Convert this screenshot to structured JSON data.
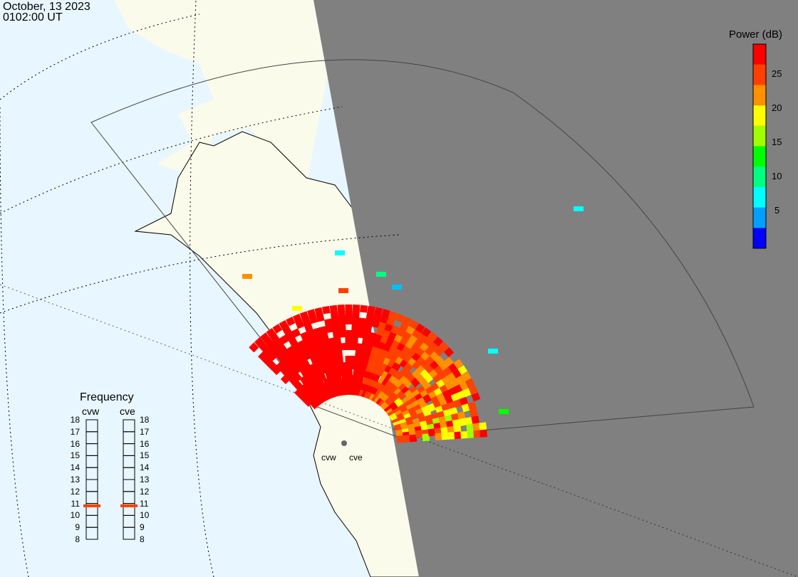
{
  "header": {
    "date": "October, 13 2023",
    "time": "0102:00 UT"
  },
  "colorbar": {
    "title": "Power (dB)",
    "ticks": [
      "25",
      "20",
      "15",
      "10",
      "5"
    ],
    "range": [
      0,
      30
    ],
    "colors": [
      "#0000ff",
      "#00a0ff",
      "#00ffff",
      "#00ff80",
      "#00ff00",
      "#a0ff00",
      "#ffff00",
      "#ff9000",
      "#ff4000",
      "#ff0000"
    ]
  },
  "frequency": {
    "title": "Frequency",
    "radars": [
      {
        "name": "cvw",
        "value_mhz": 10.8
      },
      {
        "name": "cve",
        "value_mhz": 10.8
      }
    ],
    "scale": [
      "18",
      "17",
      "16",
      "15",
      "14",
      "13",
      "12",
      "11",
      "10",
      "9",
      "8"
    ],
    "marker_color": "#ff4000"
  },
  "sites": [
    "cvw",
    "cve"
  ],
  "colors": {
    "ocean": "#e8f6ff",
    "land": "#fbfbeb",
    "night": "#808080"
  }
}
